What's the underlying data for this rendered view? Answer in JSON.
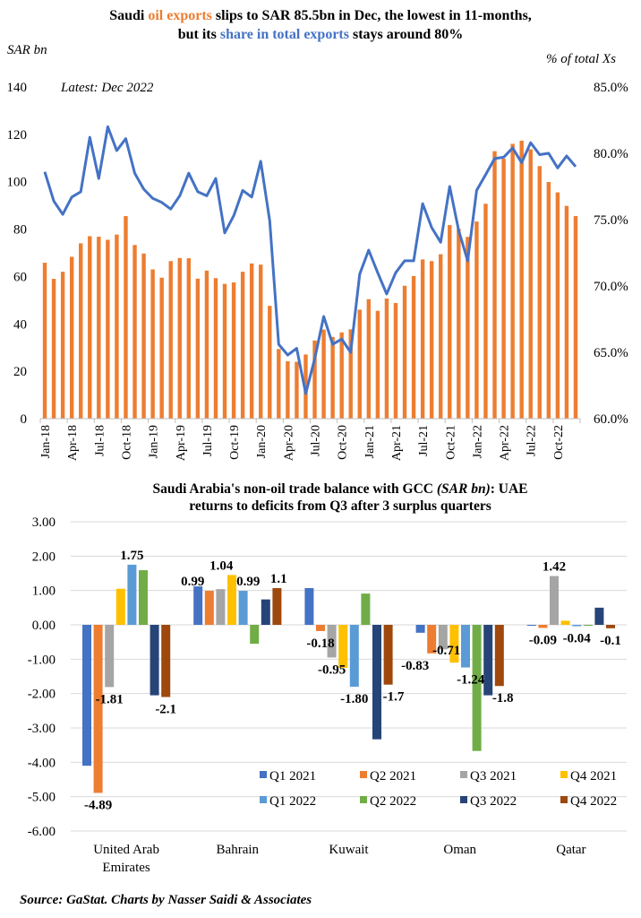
{
  "chart_data": [
    {
      "type": "bar+line",
      "title": {
        "line1": [
          "Saudi ",
          "oil exports",
          " slips to SAR 85.5bn in Dec, the lowest in 11-months,"
        ],
        "line2": [
          "but its ",
          "share in total exports",
          " stays around 80%"
        ]
      },
      "ylabel_left": "SAR bn",
      "ylabel_right": "% of total Xs",
      "annotation": "Latest: Dec 2022",
      "ylim_left": [
        0,
        140
      ],
      "yticks_left": [
        "0",
        "20",
        "40",
        "60",
        "80",
        "100",
        "120",
        "140"
      ],
      "ylim_right": [
        60,
        85
      ],
      "yticks_right": [
        "60.0%",
        "65.0%",
        "70.0%",
        "75.0%",
        "80.0%",
        "85.0%"
      ],
      "x": [
        "Jan-18",
        "Feb-18",
        "Mar-18",
        "Apr-18",
        "May-18",
        "Jun-18",
        "Jul-18",
        "Aug-18",
        "Sep-18",
        "Oct-18",
        "Nov-18",
        "Dec-18",
        "Jan-19",
        "Feb-19",
        "Mar-19",
        "Apr-19",
        "May-19",
        "Jun-19",
        "Jul-19",
        "Aug-19",
        "Sep-19",
        "Oct-19",
        "Nov-19",
        "Dec-19",
        "Jan-20",
        "Feb-20",
        "Mar-20",
        "Apr-20",
        "May-20",
        "Jun-20",
        "Jul-20",
        "Aug-20",
        "Sep-20",
        "Oct-20",
        "Nov-20",
        "Dec-20",
        "Jan-21",
        "Feb-21",
        "Mar-21",
        "Apr-21",
        "May-21",
        "Jun-21",
        "Jul-21",
        "Aug-21",
        "Sep-21",
        "Oct-21",
        "Nov-21",
        "Dec-21",
        "Jan-22",
        "Feb-22",
        "Mar-22",
        "Apr-22",
        "May-22",
        "Jun-22",
        "Jul-22",
        "Aug-22",
        "Sep-22",
        "Oct-22",
        "Nov-22",
        "Dec-22"
      ],
      "xtick_labels": [
        "Jan-18",
        "Apr-18",
        "Jul-18",
        "Oct-18",
        "Jan-19",
        "Apr-19",
        "Jul-19",
        "Oct-19",
        "Jan-20",
        "Apr-20",
        "Jul-20",
        "Oct-20",
        "Jan-21",
        "Apr-21",
        "Jul-21",
        "Oct-21",
        "Jan-22",
        "Apr-22",
        "Jul-22",
        "Oct-22"
      ],
      "series": [
        {
          "type": "bar",
          "axis": "left",
          "color": "#ED7D31",
          "values": [
            65.8,
            59,
            62,
            68.3,
            74,
            77,
            76.8,
            75.5,
            77.7,
            85.5,
            73.3,
            69.7,
            63,
            59.5,
            66.5,
            67.8,
            67.7,
            59.1,
            62.5,
            59.3,
            56.9,
            57.5,
            62,
            65.5,
            65,
            47.6,
            29.4,
            24.2,
            24,
            27.1,
            33,
            37.6,
            34.5,
            36.4,
            37.7,
            46,
            50.4,
            45.5,
            50.7,
            48.8,
            56.1,
            60.2,
            67.2,
            66.5,
            69.4,
            81.7,
            80.1,
            76.7,
            83.2,
            90.7,
            112.9,
            109.7,
            116,
            117.3,
            113.7,
            106.6,
            99.9,
            95.5,
            89.8,
            85.5
          ]
        },
        {
          "type": "line",
          "axis": "right",
          "color": "#4472C4",
          "values": [
            78.6,
            76.4,
            75.4,
            76.7,
            77.1,
            81.2,
            78.1,
            82.0,
            80.2,
            81.1,
            78.5,
            77.3,
            76.6,
            76.3,
            75.8,
            76.8,
            78.5,
            77.1,
            76.8,
            78.1,
            74.0,
            75.3,
            77.2,
            76.7,
            79.4,
            74.9,
            65.6,
            64.8,
            65.3,
            61.9,
            64.5,
            67.7,
            65.6,
            66.0,
            65.0,
            70.9,
            72.7,
            71.0,
            69.4,
            71.0,
            71.9,
            71.9,
            76.2,
            74.4,
            73.3,
            77.5,
            74.2,
            71.9,
            77.2,
            78.4,
            79.6,
            79.7,
            80.4,
            79.3,
            80.8,
            79.9,
            80.0,
            78.9,
            79.8,
            79.0
          ]
        }
      ]
    },
    {
      "type": "bar",
      "title": {
        "line1": [
          "Saudi Arabia's non-oil trade balance with GCC ",
          "(SAR bn)",
          ": UAE"
        ],
        "line2": "returns to deficits from Q3 after 3 surplus quarters"
      },
      "ylim": [
        -6,
        3
      ],
      "yticks": [
        "3.00",
        "2.00",
        "1.00",
        "0.00",
        "-1.00",
        "-2.00",
        "-3.00",
        "-4.00",
        "-5.00",
        "-6.00"
      ],
      "categories": [
        [
          "United Arab",
          "Emirates"
        ],
        [
          "Bahrain"
        ],
        [
          "Kuwait"
        ],
        [
          "Oman"
        ],
        [
          "Qatar"
        ]
      ],
      "grid": true,
      "legend_position": "bottom-right-inside",
      "series": [
        {
          "name": "Q1 2021",
          "color": "#4472C4",
          "values": [
            -4.1,
            1.12,
            1.07,
            -0.23,
            0.0
          ]
        },
        {
          "name": "Q2 2021",
          "color": "#ED7D31",
          "values": [
            -4.89,
            0.99,
            -0.18,
            -0.83,
            -0.09
          ]
        },
        {
          "name": "Q3 2021",
          "color": "#A5A5A5",
          "values": [
            -1.81,
            1.04,
            -0.95,
            -0.71,
            1.42
          ]
        },
        {
          "name": "Q4 2021",
          "color": "#FFC000",
          "values": [
            1.05,
            1.45,
            -1.25,
            -1.1,
            0.12
          ]
        },
        {
          "name": "Q1 2022",
          "color": "#5B9BD5",
          "values": [
            1.75,
            0.99,
            -1.8,
            -1.24,
            -0.04
          ]
        },
        {
          "name": "Q2 2022",
          "color": "#70AD47",
          "values": [
            1.59,
            -0.55,
            0.91,
            -3.67,
            -0.02
          ]
        },
        {
          "name": "Q3 2022",
          "color": "#264478",
          "values": [
            -2.05,
            0.74,
            -3.33,
            -2.05,
            0.5
          ]
        },
        {
          "name": "Q4 2022",
          "color": "#9E480E",
          "values": [
            -2.1,
            1.07,
            -1.74,
            -1.78,
            -0.1
          ]
        }
      ],
      "data_labels": [
        {
          "cat": 0,
          "series": 2,
          "text": "-1.81",
          "color": "#A5A5A5"
        },
        {
          "cat": 0,
          "series": 4,
          "text": "1.75",
          "color": "#4472C4"
        },
        {
          "cat": 0,
          "series": 7,
          "text": "-2.1",
          "color": "#9E480E"
        },
        {
          "cat": 0,
          "series": 1,
          "text": "-4.89",
          "color": "#ED7D31"
        },
        {
          "cat": 1,
          "series": 1,
          "text": "0.99",
          "color": "#ED7D31"
        },
        {
          "cat": 1,
          "series": 2,
          "text": "1.04",
          "color": "#A5A5A5"
        },
        {
          "cat": 1,
          "series": 4,
          "text": "0.99",
          "color": "#4472C4"
        },
        {
          "cat": 1,
          "series": 7,
          "text": "1.1",
          "color": "#9E480E"
        },
        {
          "cat": 2,
          "series": 1,
          "text": "-0.18",
          "color": "#ED7D31"
        },
        {
          "cat": 2,
          "series": 2,
          "text": "-0.95",
          "color": "#A5A5A5"
        },
        {
          "cat": 2,
          "series": 4,
          "text": "-1.80",
          "color": "#4472C4"
        },
        {
          "cat": 2,
          "series": 7,
          "text": "-1.7",
          "color": "#9E480E"
        },
        {
          "cat": 3,
          "series": 1,
          "text": "-0.83",
          "color": "#ED7D31"
        },
        {
          "cat": 3,
          "series": 2,
          "text": "-0.71",
          "color": "#A5A5A5"
        },
        {
          "cat": 3,
          "series": 4,
          "text": "-1.24",
          "color": "#4472C4"
        },
        {
          "cat": 3,
          "series": 7,
          "text": "-1.8",
          "color": "#9E480E"
        },
        {
          "cat": 4,
          "series": 2,
          "text": "1.42",
          "color": "#A5A5A5"
        },
        {
          "cat": 4,
          "series": 1,
          "text": "-0.09",
          "color": "#ED7D31"
        },
        {
          "cat": 4,
          "series": 4,
          "text": "-0.04",
          "color": "#4472C4"
        },
        {
          "cat": 4,
          "series": 7,
          "text": "-0.1",
          "color": "#9E480E"
        }
      ]
    }
  ],
  "source": "Source: GaStat. Charts by Nasser Saidi & Associates",
  "colors": {
    "oil": "#ED7D31",
    "share": "#4472C4"
  }
}
